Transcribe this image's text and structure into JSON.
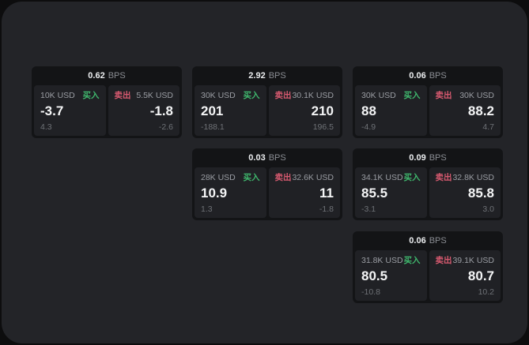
{
  "labels": {
    "bps_unit": "BPS",
    "buy": "买入",
    "sell": "卖出"
  },
  "colors": {
    "panel": "#232428",
    "card": "#131416",
    "tile": "#202125",
    "buy": "#3fb86d",
    "sell": "#d85a70"
  },
  "cards": [
    {
      "bps": "0.62",
      "buy": {
        "size": "10K USD",
        "price": "-3.7",
        "sub": "4.3"
      },
      "sell": {
        "size": "5.5K USD",
        "price": "-1.8",
        "sub": "-2.6"
      }
    },
    {
      "bps": "2.92",
      "buy": {
        "size": "30K USD",
        "price": "201",
        "sub": "-188.1"
      },
      "sell": {
        "size": "30.1K USD",
        "price": "210",
        "sub": "196.5"
      }
    },
    {
      "bps": "0.06",
      "buy": {
        "size": "30K USD",
        "price": "88",
        "sub": "-4.9"
      },
      "sell": {
        "size": "30K USD",
        "price": "88.2",
        "sub": "4.7"
      }
    },
    {
      "bps": "0.03",
      "buy": {
        "size": "28K USD",
        "price": "10.9",
        "sub": "1.3"
      },
      "sell": {
        "size": "32.6K USD",
        "price": "11",
        "sub": "-1.8"
      }
    },
    {
      "bps": "0.09",
      "buy": {
        "size": "34.1K USD",
        "price": "85.5",
        "sub": "-3.1"
      },
      "sell": {
        "size": "32.8K USD",
        "price": "85.8",
        "sub": "3.0"
      }
    },
    {
      "bps": "0.06",
      "buy": {
        "size": "31.8K USD",
        "price": "80.5",
        "sub": "-10.8"
      },
      "sell": {
        "size": "39.1K USD",
        "price": "80.7",
        "sub": "10.2"
      }
    }
  ]
}
